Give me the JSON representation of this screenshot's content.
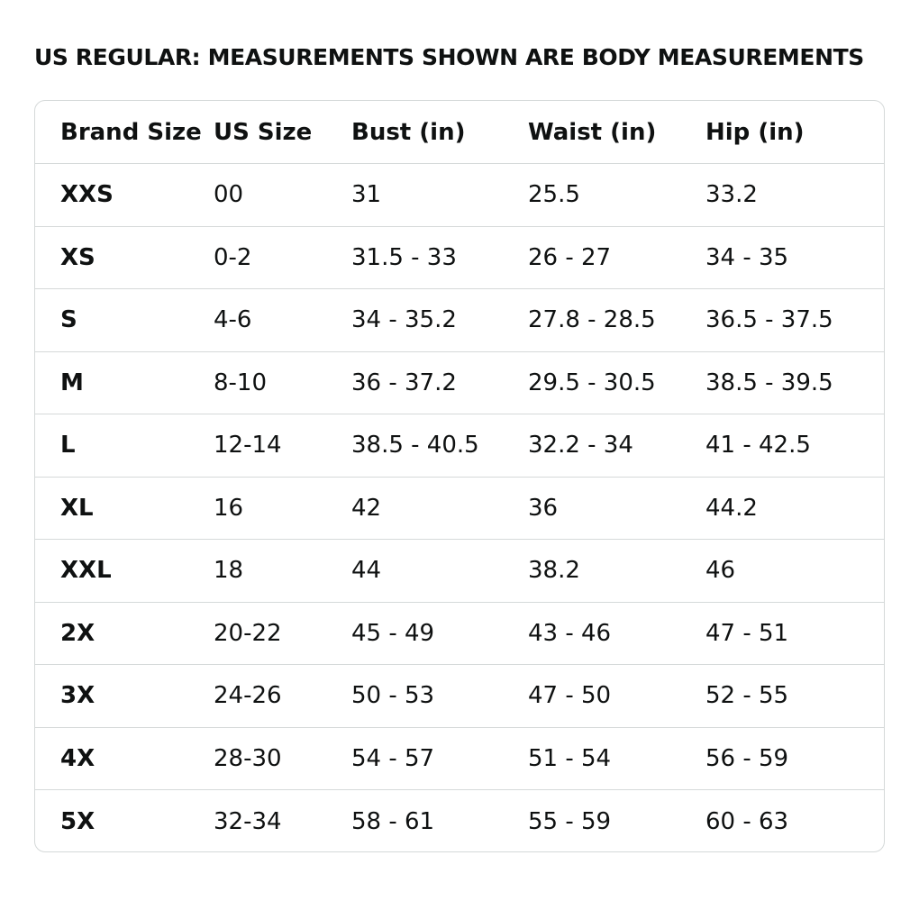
{
  "title": "US REGULAR: MEASUREMENTS SHOWN ARE BODY MEASUREMENTS",
  "table": {
    "headers": [
      "Brand Size",
      "US Size",
      "Bust (in)",
      "Waist (in)",
      "Hip (in)"
    ],
    "rows": [
      [
        "XXS",
        "00",
        "31",
        "25.5",
        "33.2"
      ],
      [
        "XS",
        "0-2",
        "31.5 - 33",
        "26 - 27",
        "34 - 35"
      ],
      [
        "S",
        "4-6",
        "34 - 35.2",
        "27.8 - 28.5",
        "36.5 - 37.5"
      ],
      [
        "M",
        "8-10",
        "36 - 37.2",
        "29.5 - 30.5",
        "38.5 - 39.5"
      ],
      [
        "L",
        "12-14",
        "38.5 - 40.5",
        "32.2 - 34",
        "41 - 42.5"
      ],
      [
        "XL",
        "16",
        "42",
        "36",
        "44.2"
      ],
      [
        "XXL",
        "18",
        "44",
        "38.2",
        "46"
      ],
      [
        "2X",
        "20-22",
        "45 - 49",
        "43 - 46",
        "47 - 51"
      ],
      [
        "3X",
        "24-26",
        "50 - 53",
        "47 - 50",
        "52 - 55"
      ],
      [
        "4X",
        "28-30",
        "54 - 57",
        "51 - 54",
        "56 - 59"
      ],
      [
        "5X",
        "32-34",
        "58 - 61",
        "55 - 59",
        "60 - 63"
      ]
    ]
  },
  "colors": {
    "text": "#0f1111",
    "border": "#d5d9d9",
    "background": "#ffffff"
  }
}
